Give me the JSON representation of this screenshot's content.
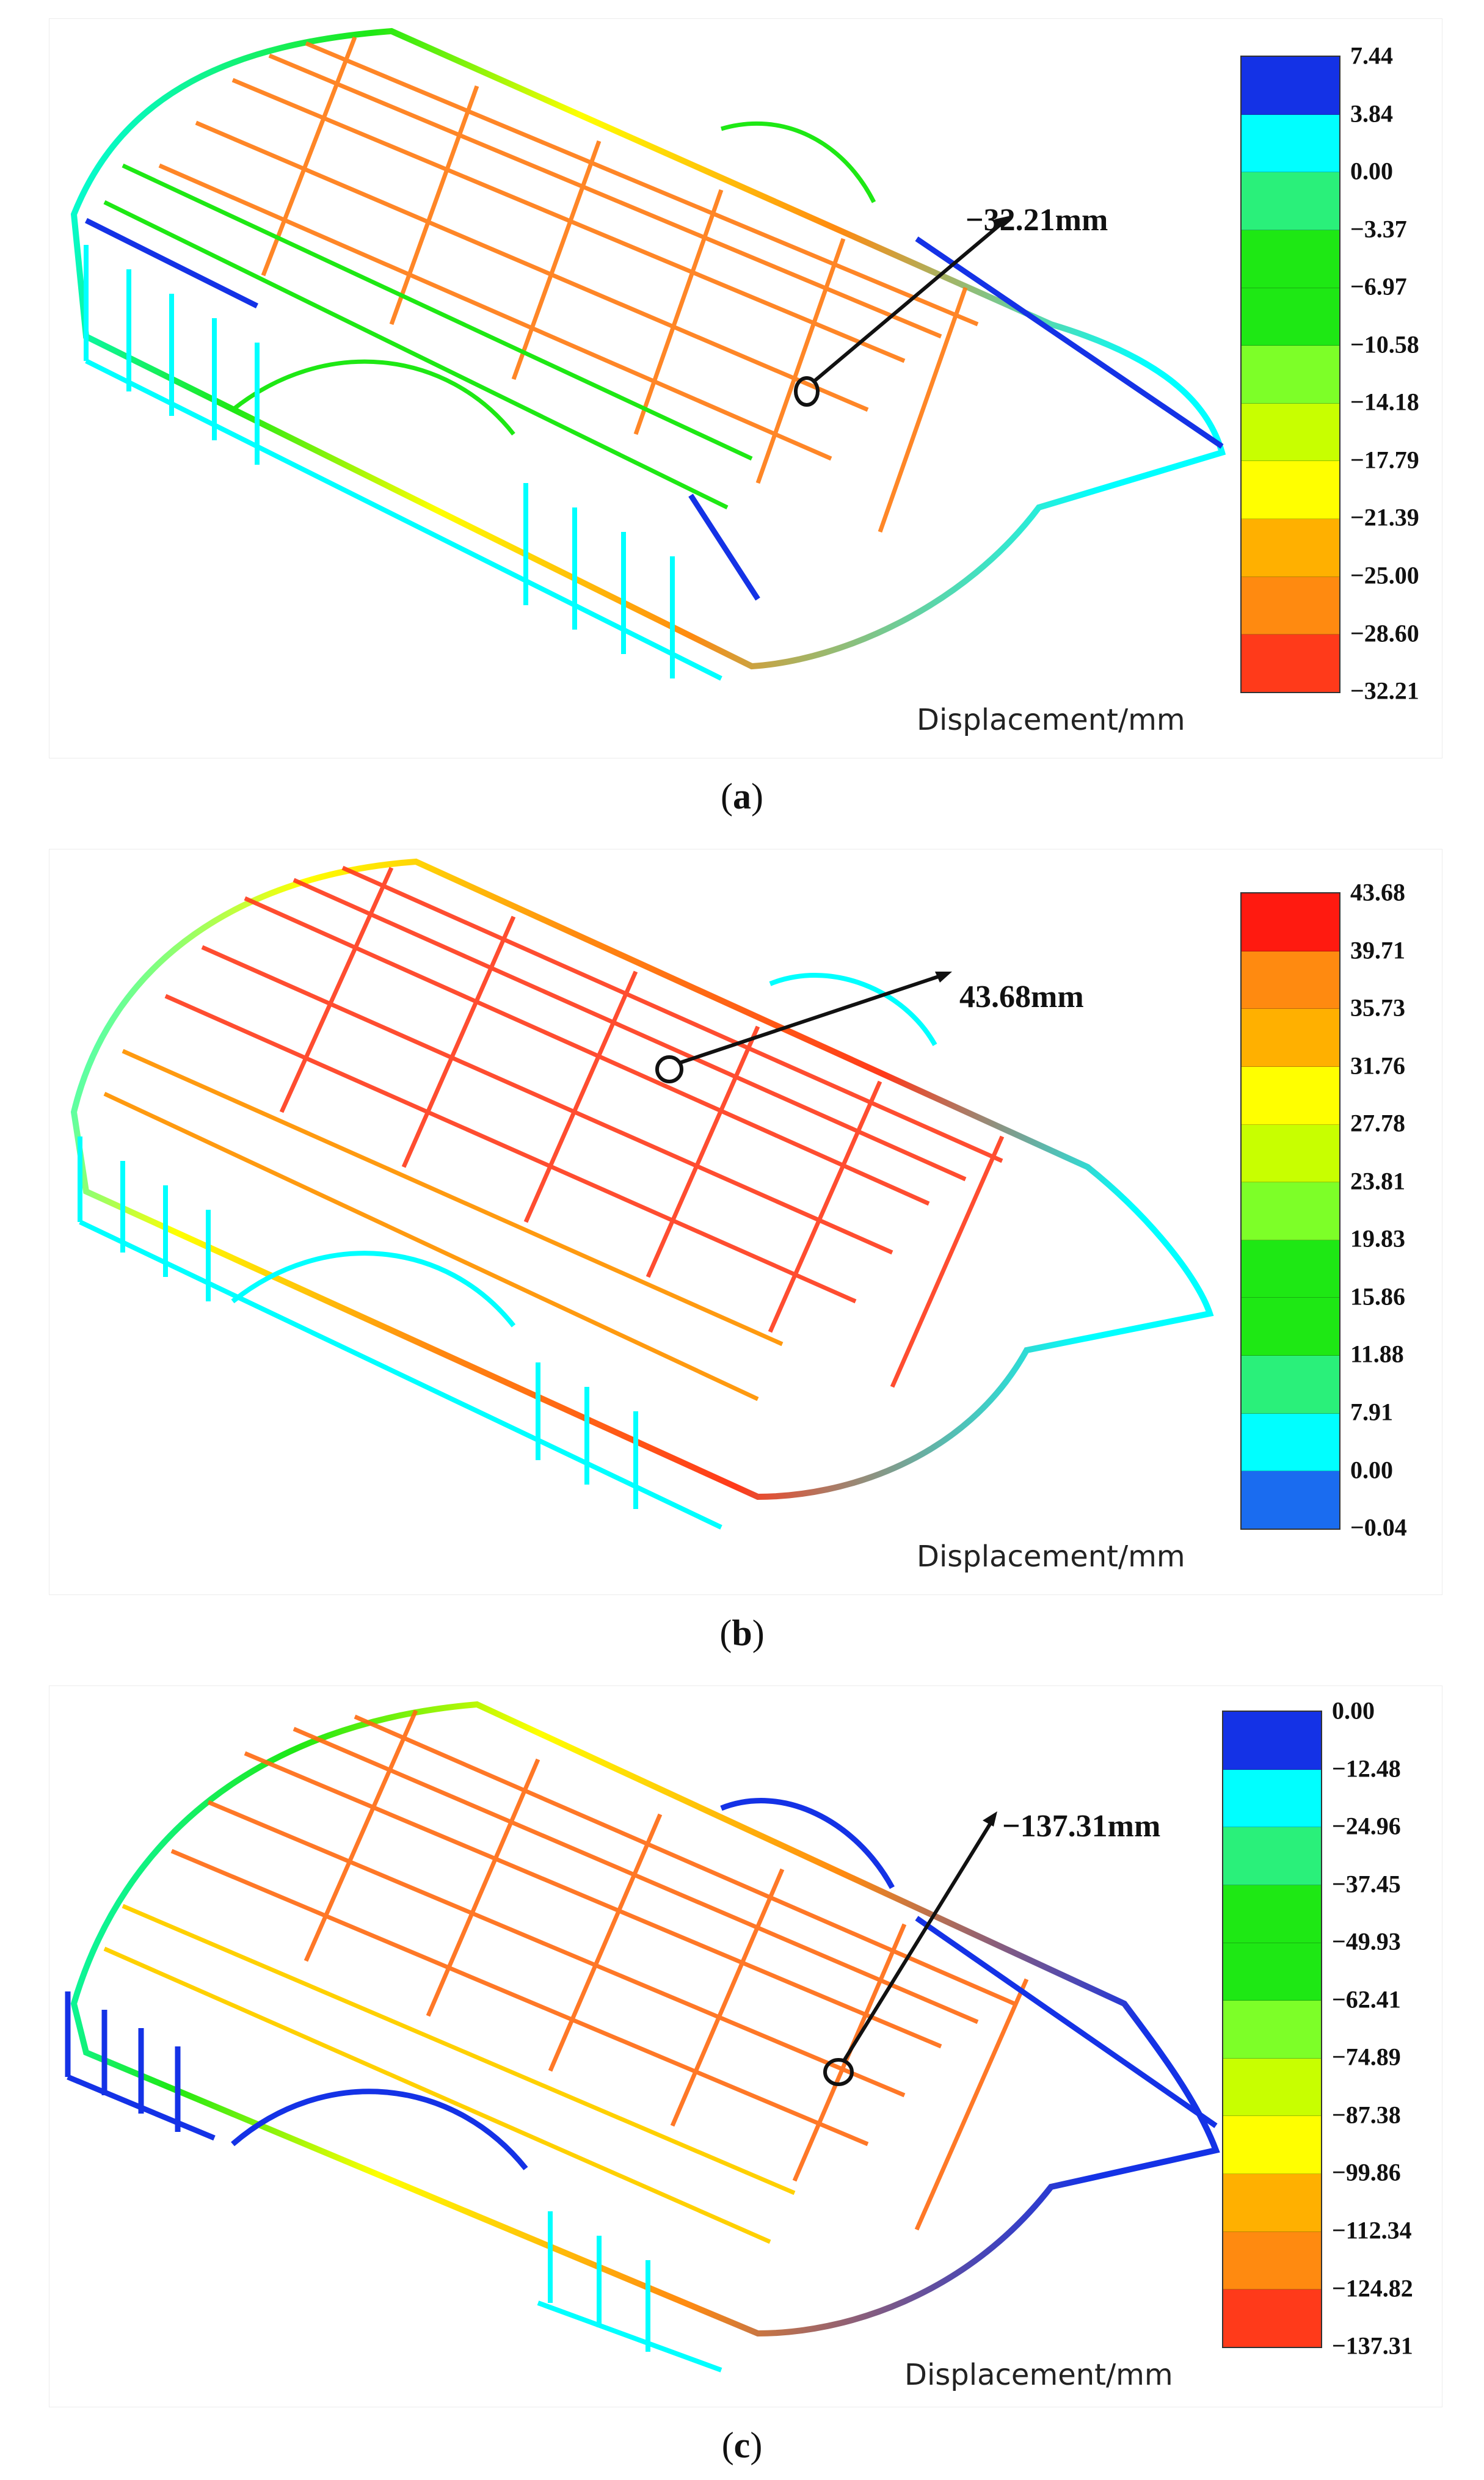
{
  "colors": {
    "red": "#ff3a1a",
    "orange": "#ff8a10",
    "light_orange": "#ffb000",
    "yellow": "#ffff00",
    "yellow_green": "#c8ff00",
    "light_green": "#7dff28",
    "green": "#1ee814",
    "sea_green": "#2af07a",
    "cyan": "#00ffff",
    "blue": "#1432e6",
    "steel_blue": "#1a6cf0"
  },
  "panels": [
    {
      "id": "a",
      "caption_letter": "a",
      "callout": "−32.21mm",
      "unit_label": "Displacement/mm",
      "legend_levels": [
        "7.44",
        "3.84",
        "0.00",
        "−3.37",
        "−6.97",
        "−10.58",
        "−14.18",
        "−17.79",
        "−21.39",
        "−25.00",
        "−28.60",
        "−32.21"
      ],
      "legend_colors": [
        "#1432e6",
        "#00ffff",
        "#2af07a",
        "#1ee814",
        "#1ee814",
        "#7dff28",
        "#c8ff00",
        "#ffff00",
        "#ffb000",
        "#ff8a10",
        "#ff3a1a"
      ]
    },
    {
      "id": "b",
      "caption_letter": "b",
      "callout": "43.68mm",
      "unit_label": "Displacement/mm",
      "legend_levels": [
        "43.68",
        "39.71",
        "35.73",
        "31.76",
        "27.78",
        "23.81",
        "19.83",
        "15.86",
        "11.88",
        "7.91",
        "0.00",
        "−0.04"
      ],
      "legend_colors": [
        "#ff1a10",
        "#ff8a10",
        "#ffb000",
        "#ffff00",
        "#c8ff00",
        "#7dff28",
        "#1ee814",
        "#1ee814",
        "#2af07a",
        "#00ffff",
        "#1a6cf0"
      ]
    },
    {
      "id": "c",
      "caption_letter": "c",
      "callout": "−137.31mm",
      "unit_label": "Displacement/mm",
      "legend_levels": [
        "0.00",
        "−12.48",
        "−24.96",
        "−37.45",
        "−49.93",
        "−62.41",
        "−74.89",
        "−87.38",
        "−99.86",
        "−112.34",
        "−124.82",
        "−137.31"
      ],
      "legend_colors": [
        "#1432e6",
        "#00ffff",
        "#2af07a",
        "#1ee814",
        "#1ee814",
        "#7dff28",
        "#c8ff00",
        "#ffff00",
        "#ffb000",
        "#ff8a10",
        "#ff3a1a"
      ]
    }
  ]
}
